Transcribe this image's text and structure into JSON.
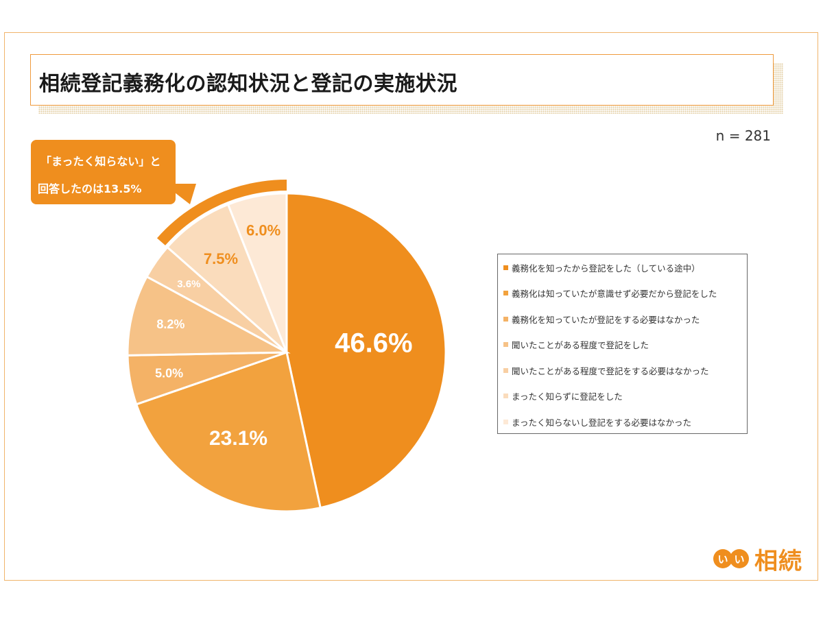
{
  "title": "相続登記義務化の認知状況と登記の実施状況",
  "n_label": "n = 281",
  "callout": {
    "line1": "「まったく知らない」と",
    "line2": "回答したのは13.5%"
  },
  "logo": {
    "circle1": "い",
    "circle2": "い",
    "text": "相続"
  },
  "chart_data": {
    "type": "pie",
    "start": "12 o'clock, clockwise",
    "slices": [
      {
        "label": "義務化を知ったから登記をした（している途中）",
        "value": 46.6,
        "value_label": "46.6%",
        "color": "#ef8e1e",
        "text_color": "#ffffff"
      },
      {
        "label": "義務化は知っていたが意識せず必要だから登記をした",
        "value": 23.1,
        "value_label": "23.1%",
        "color": "#f2a23e",
        "text_color": "#ffffff"
      },
      {
        "label": "義務化を知っていたが登記をする必要はなかった",
        "value": 5.0,
        "value_label": "5.0%",
        "color": "#f4b266",
        "text_color": "#ffffff"
      },
      {
        "label": "聞いたことがある程度で登記をした",
        "value": 8.2,
        "value_label": "8.2%",
        "color": "#f6c287",
        "text_color": "#ffffff"
      },
      {
        "label": "聞いたことがある程度で登記をする必要はなかった",
        "value": 3.6,
        "value_label": "3.6%",
        "color": "#f8cfa3",
        "text_color": "#ffffff"
      },
      {
        "label": "まったく知らずに登記をした",
        "value": 7.5,
        "value_label": "7.5%",
        "color": "#fadcbc",
        "text_color": "#ef8e1e"
      },
      {
        "label": "まったく知らないし登記をする必要はなかった",
        "value": 6.0,
        "value_label": "6.0%",
        "color": "#fde9d6",
        "text_color": "#ef8e1e"
      }
    ],
    "highlight": {
      "slices": [
        5,
        6
      ],
      "total": "13.5%",
      "color": "#ef8e1e"
    },
    "legend_position": "right"
  }
}
